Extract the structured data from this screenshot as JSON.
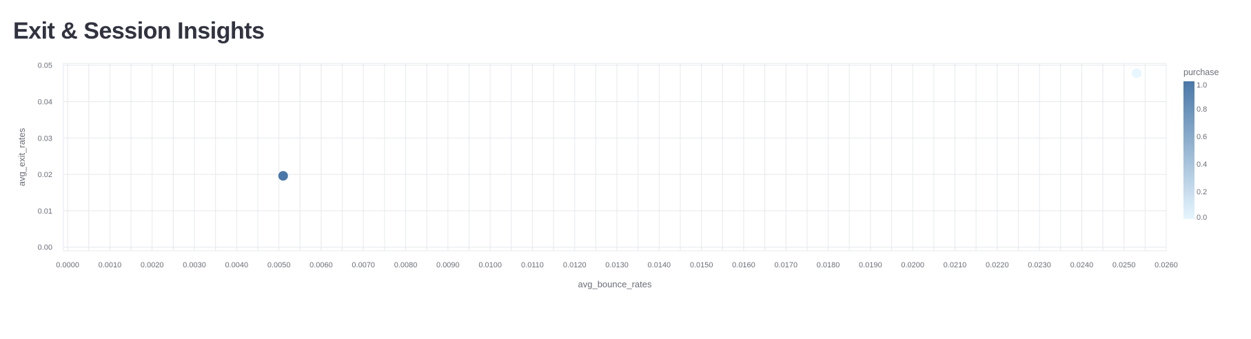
{
  "page": {
    "title": "Exit & Session Insights"
  },
  "chart_data": {
    "type": "scatter",
    "xlabel": "avg_bounce_rates",
    "ylabel": "avg_exit_rates",
    "xlim": [
      -0.0001,
      0.026
    ],
    "ylim": [
      -0.001,
      0.0505
    ],
    "x_ticks": [
      "0.0000",
      "0.0010",
      "0.0020",
      "0.0030",
      "0.0040",
      "0.0050",
      "0.0060",
      "0.0070",
      "0.0080",
      "0.0090",
      "0.0100",
      "0.0110",
      "0.0120",
      "0.0130",
      "0.0140",
      "0.0150",
      "0.0160",
      "0.0170",
      "0.0180",
      "0.0190",
      "0.0200",
      "0.0210",
      "0.0220",
      "0.0230",
      "0.0240",
      "0.0250",
      "0.0260"
    ],
    "y_ticks": [
      "0.00",
      "0.01",
      "0.02",
      "0.03",
      "0.04",
      "0.05"
    ],
    "grid": true,
    "points": [
      {
        "x": 0.0051,
        "y": 0.0196,
        "purchase": 1.0
      },
      {
        "x": 0.0253,
        "y": 0.0478,
        "purchase": 0.0
      }
    ],
    "color_scale": {
      "title": "purchase",
      "domain": [
        0,
        1
      ],
      "range": [
        "#e7f6ff",
        "#4a78a8"
      ],
      "ticks": [
        "1.0",
        "0.8",
        "0.6",
        "0.4",
        "0.2",
        "0.0"
      ]
    },
    "colors": {
      "grid": "#e6e8ec",
      "tick_text": "#6b6e78"
    }
  }
}
